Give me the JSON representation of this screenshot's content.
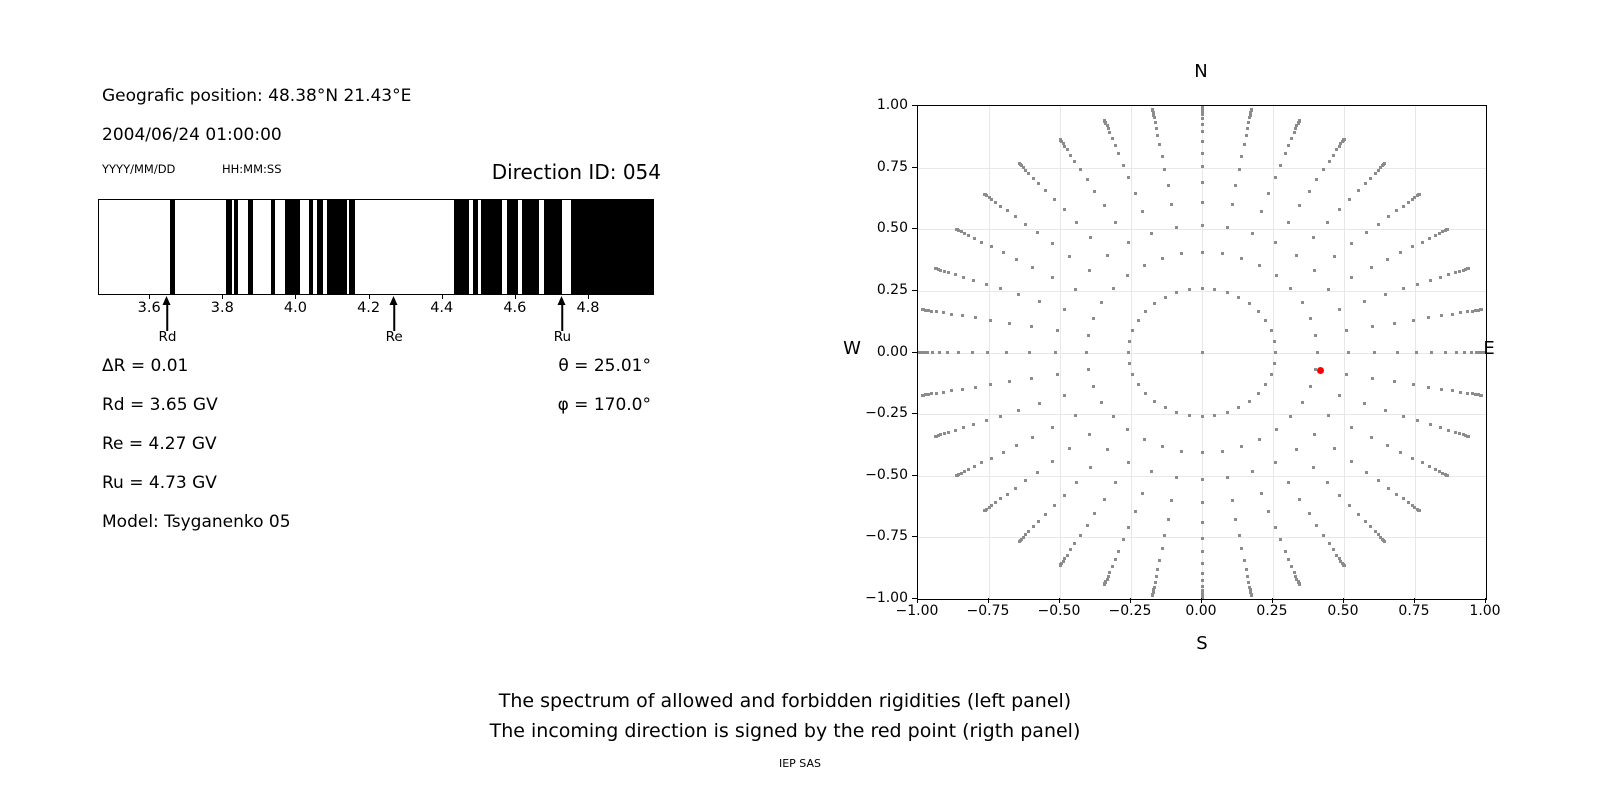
{
  "left_panel": {
    "geographic_position": "Geografic position: 48.38°N 21.43°E",
    "datetime": "2004/06/24 01:00:00",
    "date_format_label": "YYYY/MM/DD",
    "time_format_label": "HH:MM:SS",
    "direction_id": "Direction ID: 054",
    "delta_r": "ΔR = 0.01",
    "rd": "Rd = 3.65 GV",
    "re": "Re = 4.27 GV",
    "ru": "Ru = 4.73 GV",
    "model": "Model: Tsyganenko 05",
    "theta": "θ = 25.01°",
    "phi": "φ = 170.0°"
  },
  "caption": {
    "line1": "The spectrum of allowed and forbidden rigidities (left panel)",
    "line2": "The incoming direction is signed by the red point (rigth panel)",
    "credit": "IEP SAS"
  },
  "chart_data": [
    {
      "type": "bar",
      "subtype": "rigidity-barcode-spectrum",
      "description": "Allowed (white) and forbidden (black) rigidity bands in GV",
      "xlim": [
        3.46,
        4.975
      ],
      "x_tick_values": [
        3.6,
        3.8,
        4.0,
        4.2,
        4.4,
        4.6,
        4.8
      ],
      "x_tick_labels": [
        "3.6",
        "3.8",
        "4.0",
        "4.2",
        "4.4",
        "4.6",
        "4.8"
      ],
      "forbidden_color": "#000000",
      "allowed_color": "#ffffff",
      "forbidden_bands_gv": [
        [
          3.655,
          3.667
        ],
        [
          3.808,
          3.823
        ],
        [
          3.828,
          3.841
        ],
        [
          3.868,
          3.881
        ],
        [
          3.93,
          3.941
        ],
        [
          3.969,
          4.01
        ],
        [
          4.033,
          4.046
        ],
        [
          4.057,
          4.072
        ],
        [
          4.083,
          4.138
        ],
        [
          4.144,
          4.159
        ],
        [
          4.43,
          4.472
        ],
        [
          4.483,
          4.497
        ],
        [
          4.506,
          4.563
        ],
        [
          4.577,
          4.605
        ],
        [
          4.617,
          4.664
        ],
        [
          4.676,
          4.727
        ],
        [
          4.751,
          4.975
        ]
      ],
      "markers": [
        {
          "label": "Rd",
          "value_gv": 3.65
        },
        {
          "label": "Re",
          "value_gv": 4.27
        },
        {
          "label": "Ru",
          "value_gv": 4.73
        }
      ]
    },
    {
      "type": "scatter",
      "subtype": "incoming-direction-sky-plot",
      "compass_labels": {
        "top": "N",
        "bottom": "S",
        "left": "W",
        "right": "E"
      },
      "xlim": [
        -1,
        1
      ],
      "ylim": [
        -1,
        1
      ],
      "x_tick_values": [
        -1,
        -0.75,
        -0.5,
        -0.25,
        0,
        0.25,
        0.5,
        0.75,
        1
      ],
      "x_tick_labels": [
        "−1.00",
        "−0.75",
        "−0.50",
        "−0.25",
        "0.00",
        "0.25",
        "0.50",
        "0.75",
        "1.00"
      ],
      "y_tick_values": [
        1,
        0.75,
        0.5,
        0.25,
        0,
        -0.25,
        -0.5,
        -0.75,
        -1
      ],
      "y_tick_labels": [
        "1.00",
        "0.75",
        "0.50",
        "0.25",
        "0.00",
        "−0.25",
        "−0.50",
        "−0.75",
        "−1.00"
      ],
      "grid": true,
      "grid_color": "#e8e8e8",
      "dot_color": "#8c8c8c",
      "direction_grid": {
        "azimuth_start_deg": 0,
        "azimuth_step_deg": 10,
        "azimuth_count": 36,
        "spoke_radii": [
          0.259,
          0.407,
          0.515,
          0.609,
          0.688,
          0.755,
          0.809,
          0.857,
          0.895,
          0.924,
          0.949,
          0.966,
          0.978,
          0.989,
          0.995,
          0.999,
          1.0
        ],
        "center_dot": [
          0,
          0
        ]
      },
      "red_point": {
        "x": 0.4164,
        "y": -0.0734,
        "color": "#ff0000",
        "theta_deg": 25.01,
        "phi_deg": 170.0
      }
    }
  ]
}
